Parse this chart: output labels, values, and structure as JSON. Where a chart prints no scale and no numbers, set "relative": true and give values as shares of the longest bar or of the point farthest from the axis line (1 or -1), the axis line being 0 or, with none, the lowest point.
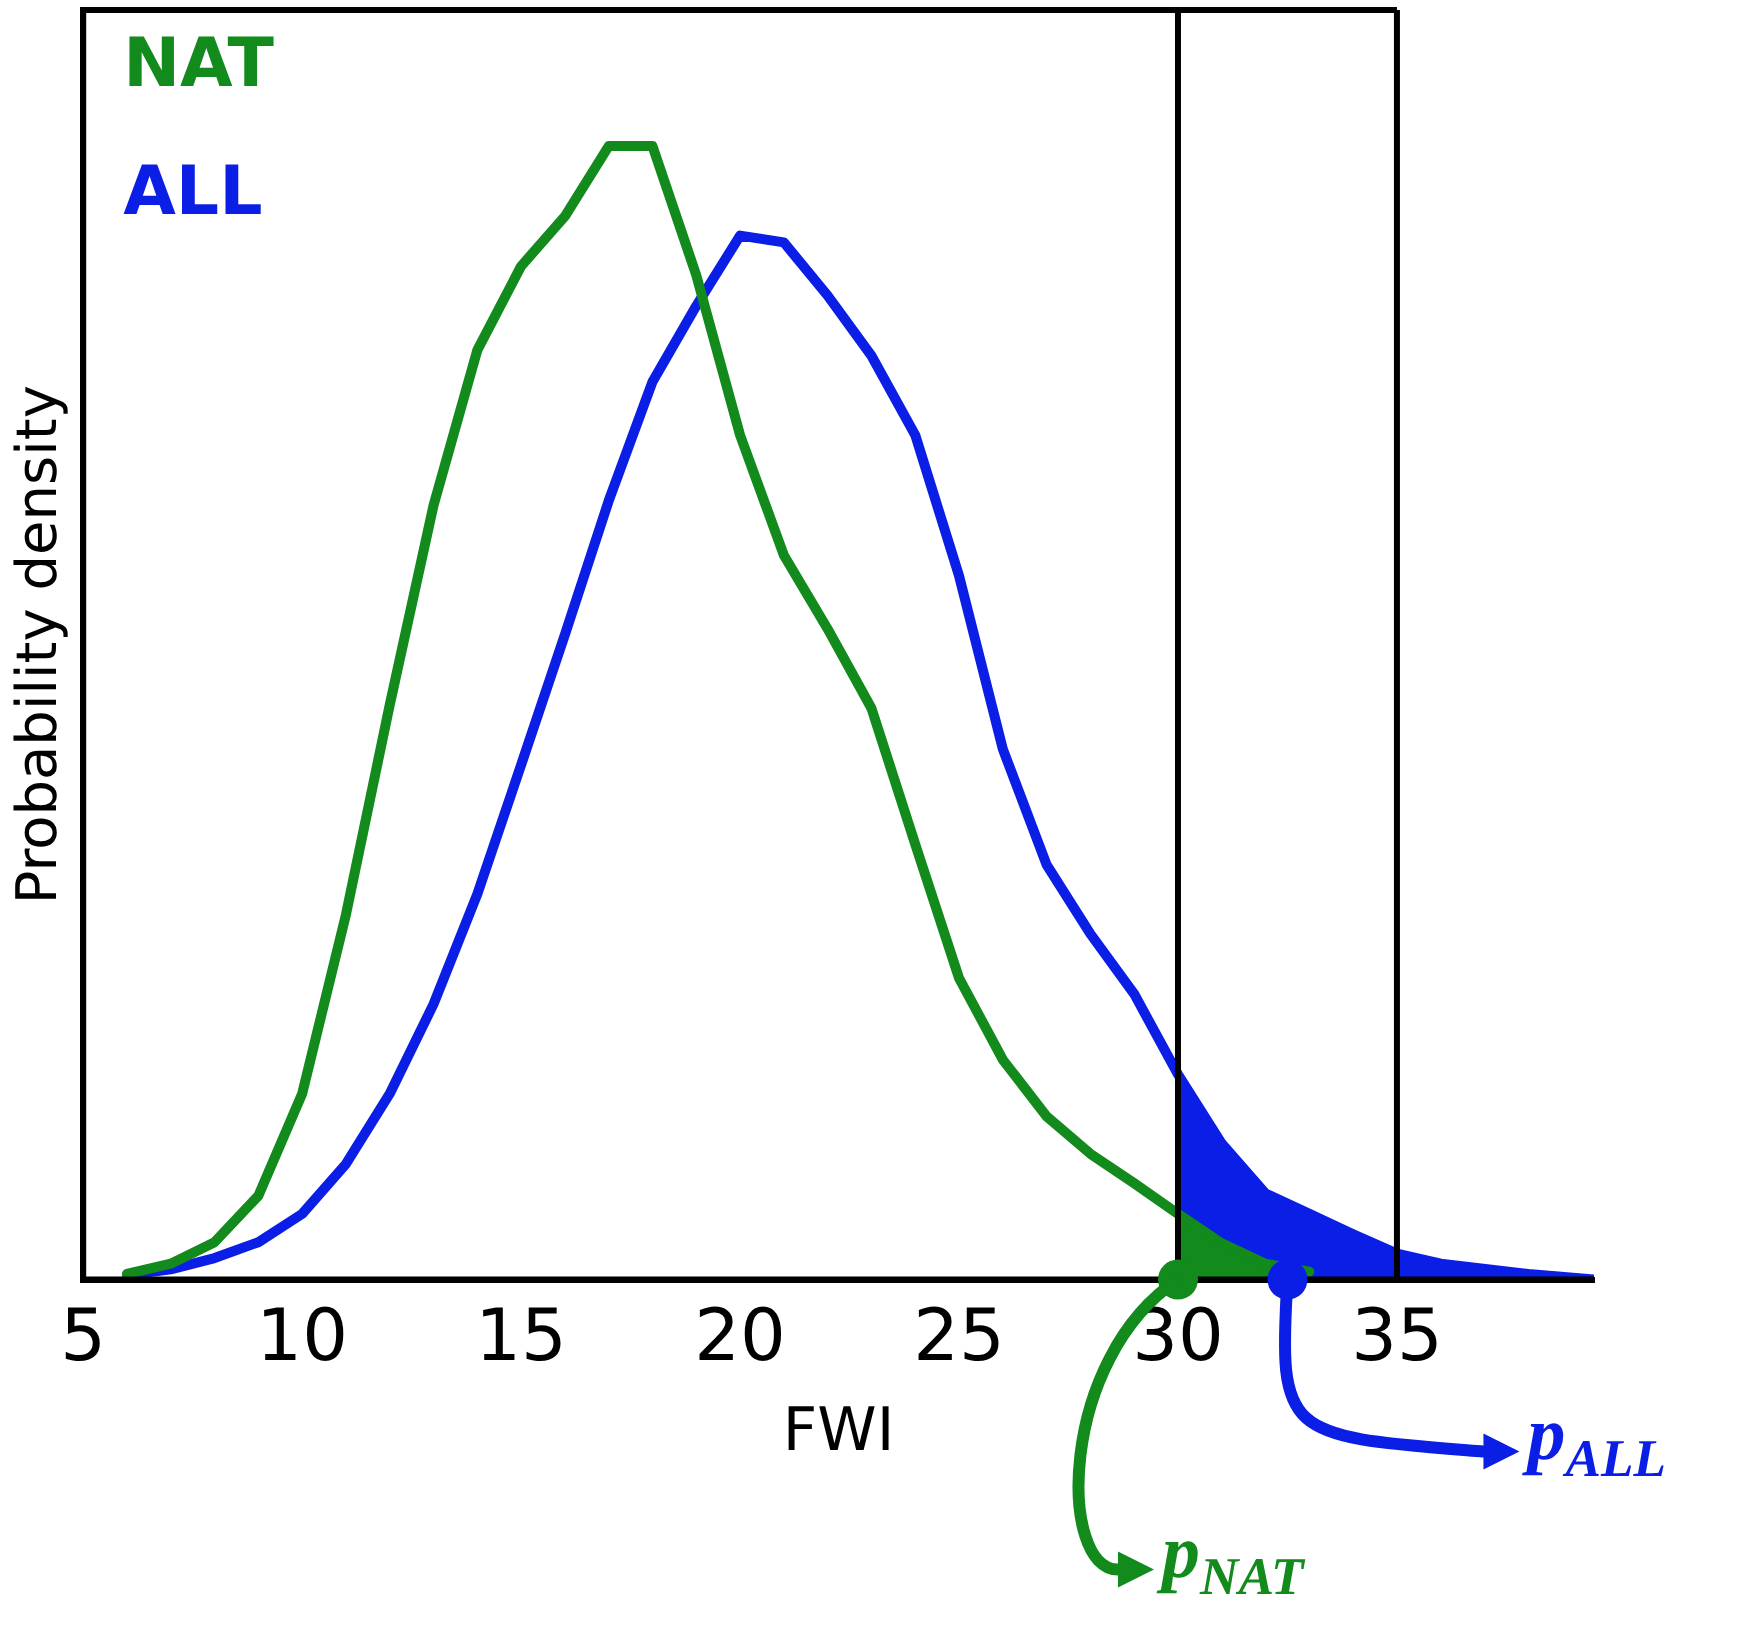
{
  "chart_data": {
    "type": "line",
    "xlabel": "FWI",
    "ylabel": "Probability density",
    "relative": true,
    "xlim": [
      5,
      39.5
    ],
    "xticks": [
      5,
      10,
      15,
      20,
      25,
      30,
      35
    ],
    "legend": "top left",
    "grid": false,
    "series": [
      {
        "name": "NAT",
        "color": "#128a1c",
        "x": [
          6,
          7,
          8,
          9,
          10,
          11,
          12,
          13,
          14,
          15,
          16,
          17,
          18,
          19,
          20,
          21,
          22,
          23,
          24,
          25,
          26,
          27,
          28,
          29,
          30,
          31,
          32,
          33
        ],
        "values": [
          0.005,
          0.014,
          0.033,
          0.074,
          0.164,
          0.322,
          0.507,
          0.683,
          0.82,
          0.894,
          0.938,
          1,
          1,
          0.886,
          0.745,
          0.639,
          0.574,
          0.504,
          0.384,
          0.266,
          0.194,
          0.144,
          0.111,
          0.085,
          0.058,
          0.032,
          0.014,
          0.007
        ]
      },
      {
        "name": "ALL",
        "color": "#0a1ee6",
        "x": [
          6,
          7,
          8,
          9,
          10,
          11,
          12,
          13,
          14,
          15,
          16,
          17,
          18,
          19,
          20,
          21,
          22,
          23,
          24,
          25,
          26,
          27,
          28,
          29,
          30,
          31,
          32,
          33,
          34,
          35,
          36,
          38,
          39.5
        ],
        "values": [
          0.004,
          0.009,
          0.019,
          0.033,
          0.058,
          0.102,
          0.164,
          0.243,
          0.34,
          0.454,
          0.569,
          0.687,
          0.792,
          0.859,
          0.921,
          0.915,
          0.868,
          0.815,
          0.745,
          0.621,
          0.468,
          0.366,
          0.305,
          0.252,
          0.181,
          0.12,
          0.076,
          0.058,
          0.04,
          0.023,
          0.014,
          0.005,
          0
        ]
      },
      {
        "type": "area",
        "color": "#0a1ee6",
        "x": [
          30,
          31,
          32,
          33,
          34,
          35,
          36,
          38,
          39.5
        ],
        "values": [
          0.181,
          0.12,
          0.076,
          0.058,
          0.04,
          0.023,
          0.014,
          0.005,
          0
        ]
      },
      {
        "type": "area",
        "color": "#128a1c",
        "x": [
          30,
          31,
          32,
          33
        ],
        "values": [
          0.058,
          0.032,
          0.014,
          0.007
        ]
      }
    ],
    "ref_lines": [
      {
        "axis": "x",
        "value": 30,
        "color": "#000000"
      },
      {
        "axis": "x",
        "value": 35,
        "color": "#000000"
      }
    ],
    "annotations": [
      {
        "text": "p$_{NAT}$",
        "x": 30,
        "y": 0
      },
      {
        "text": "p$_{ALL}$",
        "x": 32.5,
        "y": 0
      }
    ]
  }
}
